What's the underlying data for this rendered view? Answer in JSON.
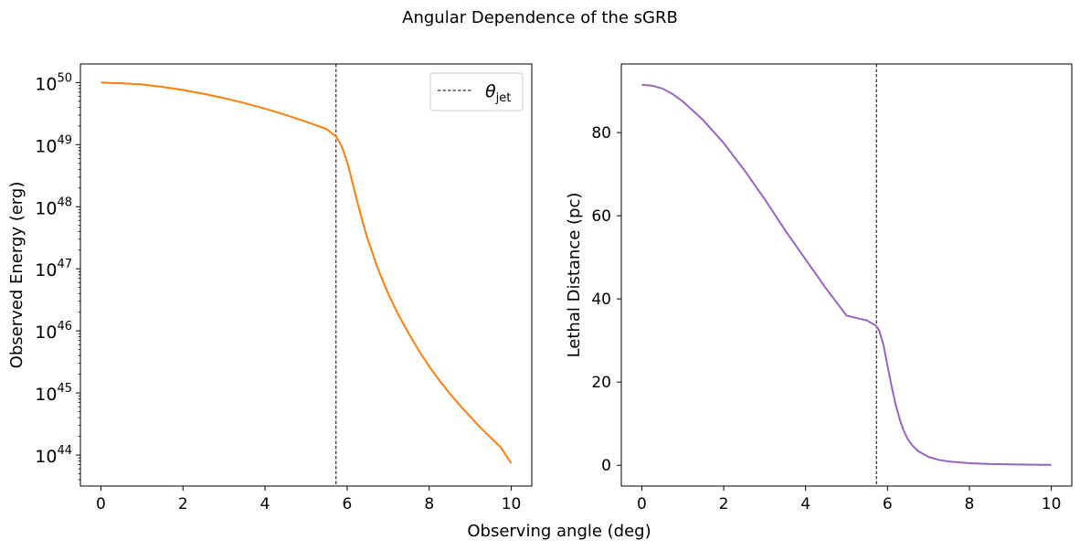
{
  "suptitle": "Angular Dependence of the sGRB",
  "shared_xlabel": "Observing angle (deg)",
  "colors": {
    "energy": "#ff7f0e",
    "distance": "#9467bd",
    "jet": "#000000"
  },
  "chart_data": [
    {
      "type": "line",
      "yscale": "log",
      "ylabel": "Observed Energy (erg)",
      "xlim": [
        -0.5,
        10.5
      ],
      "ylim_log10": [
        43.5,
        50.3
      ],
      "xticks": [
        0,
        2,
        4,
        6,
        8,
        10
      ],
      "yticks": [
        {
          "base": "10",
          "exp": "44",
          "log": 44
        },
        {
          "base": "10",
          "exp": "45",
          "log": 45
        },
        {
          "base": "10",
          "exp": "46",
          "log": 46
        },
        {
          "base": "10",
          "exp": "47",
          "log": 47
        },
        {
          "base": "10",
          "exp": "48",
          "log": 48
        },
        {
          "base": "10",
          "exp": "49",
          "log": 49
        },
        {
          "base": "10",
          "exp": "50",
          "log": 50
        }
      ],
      "theta_jet": 5.73,
      "legend": {
        "placement": "upper-right",
        "symbol": "θ",
        "subscript": "jet"
      },
      "series": [
        {
          "x": [
            0,
            0.5,
            1,
            1.5,
            2,
            2.5,
            3,
            3.5,
            4,
            4.5,
            5,
            5.5,
            5.73,
            5.8,
            5.9,
            6.0,
            6.1,
            6.2,
            6.3,
            6.4,
            6.5,
            6.75,
            7,
            7.25,
            7.5,
            7.75,
            8,
            8.25,
            8.5,
            8.75,
            9,
            9.25,
            9.5,
            9.75,
            10
          ],
          "log10y": [
            50.0,
            49.99,
            49.97,
            49.93,
            49.88,
            49.82,
            49.75,
            49.67,
            49.58,
            49.48,
            49.37,
            49.25,
            49.13,
            49.06,
            48.92,
            48.72,
            48.47,
            48.2,
            47.95,
            47.7,
            47.48,
            47.0,
            46.6,
            46.26,
            45.96,
            45.68,
            45.43,
            45.2,
            44.99,
            44.8,
            44.62,
            44.44,
            44.28,
            44.12,
            43.87
          ]
        }
      ]
    },
    {
      "type": "line",
      "yscale": "linear",
      "ylabel": "Lethal Distance (pc)",
      "xlim": [
        -0.5,
        10.5
      ],
      "ylim": [
        -5,
        96.5
      ],
      "xticks": [
        0,
        2,
        4,
        6,
        8,
        10
      ],
      "yticks": [
        0,
        20,
        40,
        60,
        80
      ],
      "theta_jet": 5.73,
      "series": [
        {
          "x": [
            0,
            0.25,
            0.5,
            0.75,
            1,
            1.5,
            2,
            2.5,
            3,
            3.5,
            4,
            4.5,
            5,
            5.5,
            5.73,
            5.8,
            5.9,
            6.0,
            6.1,
            6.2,
            6.3,
            6.4,
            6.5,
            6.6,
            6.75,
            7,
            7.25,
            7.5,
            8,
            8.5,
            9,
            9.5,
            10
          ],
          "y": [
            91.5,
            91.3,
            90.6,
            89.3,
            87.5,
            83.0,
            77.5,
            71.0,
            64.0,
            56.5,
            49.5,
            42.5,
            36.0,
            34.8,
            33.5,
            32.3,
            29.0,
            24.0,
            19.0,
            14.5,
            11.0,
            8.2,
            6.2,
            4.8,
            3.4,
            2.0,
            1.3,
            0.9,
            0.5,
            0.3,
            0.2,
            0.15,
            0.1
          ]
        }
      ]
    }
  ]
}
